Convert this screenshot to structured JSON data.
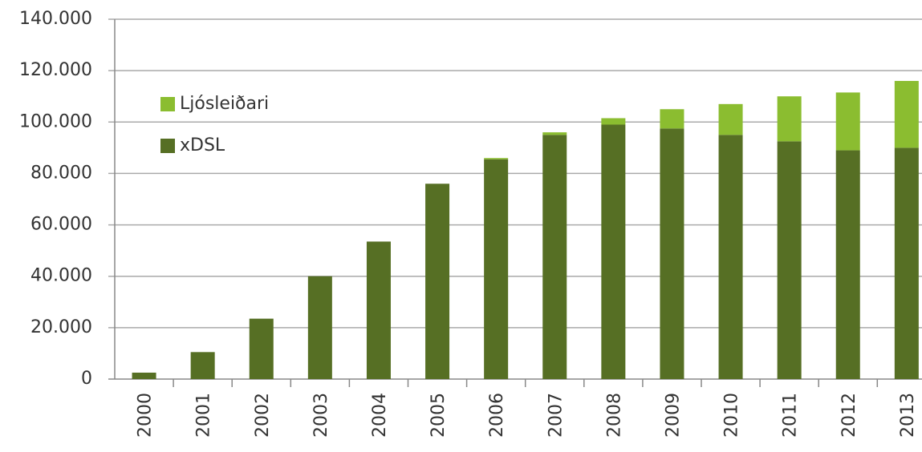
{
  "chart_data": {
    "type": "stacked_bar",
    "categories": [
      "2000",
      "2001",
      "2002",
      "2003",
      "2004",
      "2005",
      "2006",
      "2007",
      "2008",
      "2009",
      "2010",
      "2011",
      "2012",
      "2013"
    ],
    "series": [
      {
        "name": "xDSL",
        "color": "#566f24",
        "values": [
          2500,
          10500,
          23500,
          40000,
          53500,
          76000,
          85500,
          95000,
          99000,
          97500,
          95000,
          92500,
          89000,
          90000
        ]
      },
      {
        "name": "Ljósleiðari",
        "color": "#8bbd30",
        "values": [
          0,
          0,
          0,
          0,
          0,
          0,
          500,
          1000,
          2500,
          7500,
          12000,
          17500,
          22500,
          26000
        ]
      }
    ],
    "ylim": [
      0,
      140000
    ],
    "yticks": [
      0,
      {
        "value": 20000,
        "label": "20.000"
      },
      {
        "value": 40000,
        "label": "40.000"
      },
      {
        "value": 60000,
        "label": "60.000"
      },
      {
        "value": 80000,
        "label": "80.000"
      },
      {
        "value": 100000,
        "label": "100.000"
      },
      {
        "value": 120000,
        "label": "120.000"
      },
      {
        "value": 140000,
        "label": "140.000"
      }
    ],
    "grid": true,
    "legend": "upper left"
  }
}
